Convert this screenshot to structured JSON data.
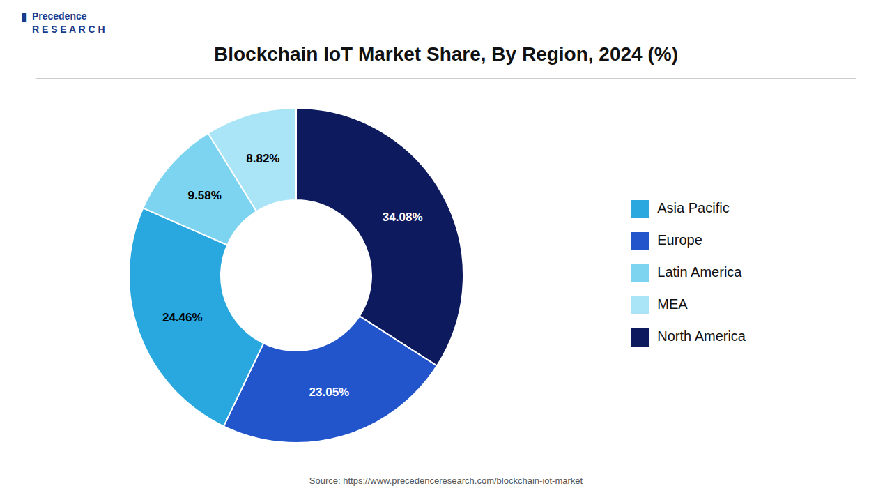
{
  "chart_data": {
    "type": "pie",
    "title": "Blockchain IoT Market Share, By Region, 2024 (%)",
    "categories": [
      "North America",
      "Europe",
      "Asia Pacific",
      "Latin America",
      "MEA"
    ],
    "values": [
      34.08,
      23.05,
      24.46,
      9.58,
      8.82
    ],
    "value_labels": [
      "34.08%",
      "23.05%",
      "24.46%",
      "9.58%",
      "8.82%"
    ],
    "colors": [
      "#0d1b5e",
      "#2255cc",
      "#29a8e0",
      "#7dd4f0",
      "#aae4f7"
    ],
    "data_labels": true,
    "legend": "right",
    "annotations": [
      "▮",
      "Precedence",
      "R E S E A R C H",
      "Source: https://www.precedenceresearch.com/blockchain-iot-market"
    ]
  }
}
